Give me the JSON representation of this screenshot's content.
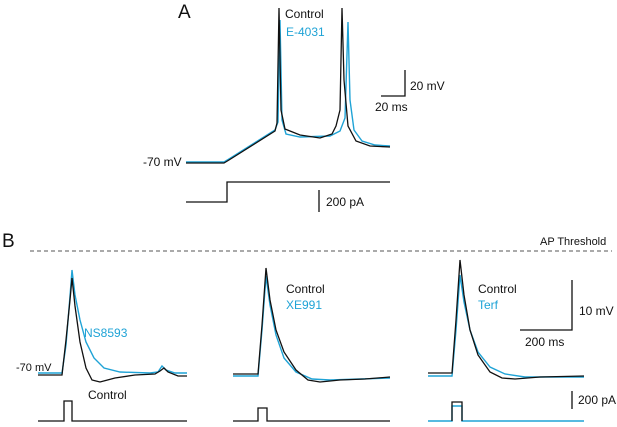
{
  "panels": {
    "a": {
      "letter": "A",
      "legend_control": "Control",
      "legend_drug": "E-4031",
      "scale_v": "20 mV",
      "scale_t": "20 ms",
      "vrest": "-70 mV",
      "scale_i": "200 pA"
    },
    "b": {
      "letter": "B",
      "threshold": "AP Threshold",
      "vrest": "-70 mV",
      "left_drug": "NS8593",
      "left_control": "Control",
      "mid_control": "Control",
      "mid_drug": "XE991",
      "right_control": "Control",
      "right_drug": "Terf",
      "scale_v": "10 mV",
      "scale_t": "200 ms",
      "scale_i": "200 pA"
    }
  },
  "colors": {
    "control": "#111111",
    "drug": "#1fa3d6"
  }
}
